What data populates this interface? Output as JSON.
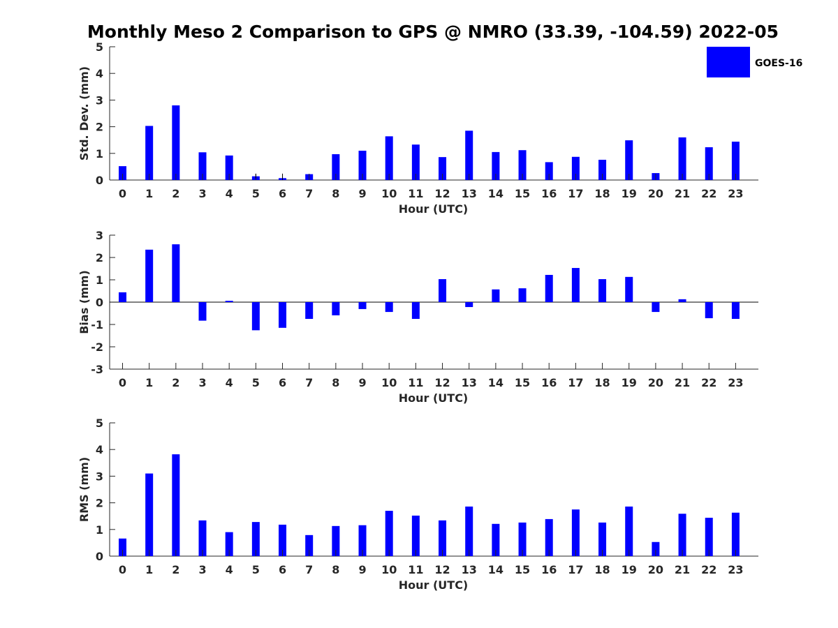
{
  "figure": {
    "title": "Monthly Meso 2 Comparison to GPS @ NMRO (33.39, -104.59) 2022-05",
    "legend": {
      "label": "GOES-16",
      "color": "#0000FF"
    }
  },
  "chart_data": [
    {
      "type": "bar",
      "ylabel": "Std. Dev. (mm)",
      "xlabel": "Hour (UTC)",
      "categories": [
        "0",
        "1",
        "2",
        "3",
        "4",
        "5",
        "6",
        "7",
        "8",
        "9",
        "10",
        "11",
        "12",
        "13",
        "14",
        "15",
        "16",
        "17",
        "18",
        "19",
        "20",
        "21",
        "22",
        "23"
      ],
      "values": [
        0.52,
        2.03,
        2.8,
        1.04,
        0.92,
        0.14,
        0.07,
        0.22,
        0.97,
        1.1,
        1.64,
        1.33,
        0.86,
        1.85,
        1.05,
        1.12,
        0.67,
        0.87,
        0.76,
        1.49,
        0.26,
        1.6,
        1.23,
        1.44
      ],
      "ylim": [
        0,
        5
      ],
      "yticks": [
        "0",
        "1",
        "2",
        "3",
        "4",
        "5"
      ],
      "yticks_values": [
        0,
        1,
        2,
        3,
        4,
        5
      ],
      "errorbars": {
        "5": [
          0.06,
          0.24
        ],
        "6": [
          0.0,
          0.24
        ]
      },
      "color": "#0000FF"
    },
    {
      "type": "bar",
      "ylabel": "Bias (mm)",
      "xlabel": "Hour (UTC)",
      "categories": [
        "0",
        "1",
        "2",
        "3",
        "4",
        "5",
        "6",
        "7",
        "8",
        "9",
        "10",
        "11",
        "12",
        "13",
        "14",
        "15",
        "16",
        "17",
        "18",
        "19",
        "20",
        "21",
        "22",
        "23"
      ],
      "values": [
        0.44,
        2.35,
        2.59,
        -0.83,
        0.06,
        -1.26,
        -1.15,
        -0.75,
        -0.59,
        -0.31,
        -0.44,
        -0.75,
        1.03,
        -0.22,
        0.57,
        0.62,
        1.22,
        1.53,
        1.03,
        1.13,
        -0.44,
        0.13,
        -0.72,
        -0.75
      ],
      "ylim": [
        -3,
        3
      ],
      "yticks": [
        "-3",
        "-2",
        "-1",
        "0",
        "1",
        "2",
        "3"
      ],
      "yticks_values": [
        -3,
        -2,
        -1,
        0,
        1,
        2,
        3
      ],
      "zero_line": true,
      "color": "#0000FF"
    },
    {
      "type": "bar",
      "ylabel": "RMS (mm)",
      "xlabel": "Hour (UTC)",
      "categories": [
        "0",
        "1",
        "2",
        "3",
        "4",
        "5",
        "6",
        "7",
        "8",
        "9",
        "10",
        "11",
        "12",
        "13",
        "14",
        "15",
        "16",
        "17",
        "18",
        "19",
        "20",
        "21",
        "22",
        "23"
      ],
      "values": [
        0.66,
        3.1,
        3.82,
        1.34,
        0.9,
        1.28,
        1.18,
        0.79,
        1.13,
        1.16,
        1.7,
        1.52,
        1.34,
        1.86,
        1.21,
        1.26,
        1.39,
        1.75,
        1.26,
        1.86,
        0.53,
        1.59,
        1.44,
        1.63
      ],
      "ylim": [
        0,
        5
      ],
      "yticks": [
        "0",
        "1",
        "2",
        "3",
        "4",
        "5"
      ],
      "yticks_values": [
        0,
        1,
        2,
        3,
        4,
        5
      ],
      "color": "#0000FF"
    }
  ]
}
